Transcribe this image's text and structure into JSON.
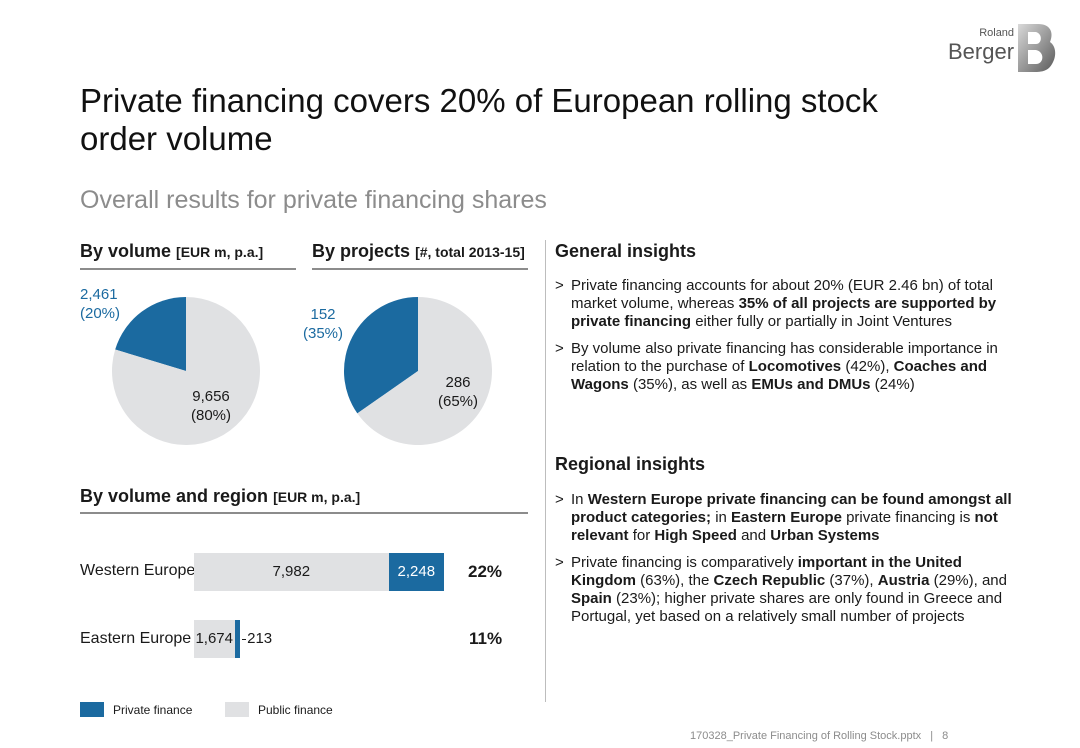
{
  "logo": {
    "small": "Roland",
    "big": "Berger"
  },
  "title": "Private financing covers 20% of European rolling stock order volume",
  "subtitle": "Overall results for private financing shares",
  "colors": {
    "private": "#1b6aa0",
    "public": "#e0e1e3",
    "rule": "#8c8c8c"
  },
  "chart_data": [
    {
      "type": "pie",
      "title": "By volume",
      "unit": "[EUR m, p.a.]",
      "slices": [
        {
          "value": 2461,
          "label": "2,461",
          "pct_label": "(20%)"
        },
        {
          "value": 9656,
          "label": "9,656",
          "pct_label": "(80%)"
        }
      ]
    },
    {
      "type": "pie",
      "title": "By projects",
      "unit": "[#, total 2013-15]",
      "slices": [
        {
          "value": 152,
          "label": "152",
          "pct_label": "(35%)"
        },
        {
          "value": 286,
          "label": "286",
          "pct_label": "(65%)"
        }
      ]
    },
    {
      "type": "bar",
      "orientation": "horizontal",
      "stacked": true,
      "title": "By volume and region",
      "unit": "[EUR m, p.a.]",
      "categories": [
        "Western Europe",
        "Eastern Europe"
      ],
      "series": [
        {
          "name": "Public finance",
          "values": [
            7982,
            1674
          ],
          "labels": [
            "7,982",
            "1,674"
          ]
        },
        {
          "name": "Private finance",
          "values": [
            2248,
            213
          ],
          "labels": [
            "2,248",
            "213"
          ]
        }
      ],
      "share_labels": [
        "22%",
        "11%"
      ]
    }
  ],
  "legend": {
    "private": "Private finance",
    "public": "Public finance"
  },
  "general": {
    "heading": "General insights",
    "items": [
      "Private financing accounts for about 20% (EUR 2.46 bn) of total market volume, whereas <b>35% of all projects are supported by private financing</b> either fully or partially in Joint Ventures",
      "By volume also private financing has considerable importance in relation to the purchase of <b>Locomotives</b> (42%), <b>Coaches and Wagons</b> (35%), as well as <b>EMUs and DMUs</b> (24%)"
    ]
  },
  "regional": {
    "heading": "Regional insights",
    "items": [
      "In <b>Western Europe private financing can be found amongst all product categories;</b> in <b>Eastern Europe</b> private financing is <b>not relevant</b> for <b>High Speed</b> and <b>Urban Systems</b>",
      "Private financing is comparatively <b>important in the United Kingdom</b> (63%), the <b>Czech Republic</b> (37%), <b>Austria</b> (29%), and <b>Spain</b> (23%); higher private shares are only found in Greece and Portugal, yet based on a relatively small number of projects"
    ]
  },
  "footer": {
    "file": "170328_Private Financing of Rolling Stock.pptx",
    "page": "8"
  }
}
